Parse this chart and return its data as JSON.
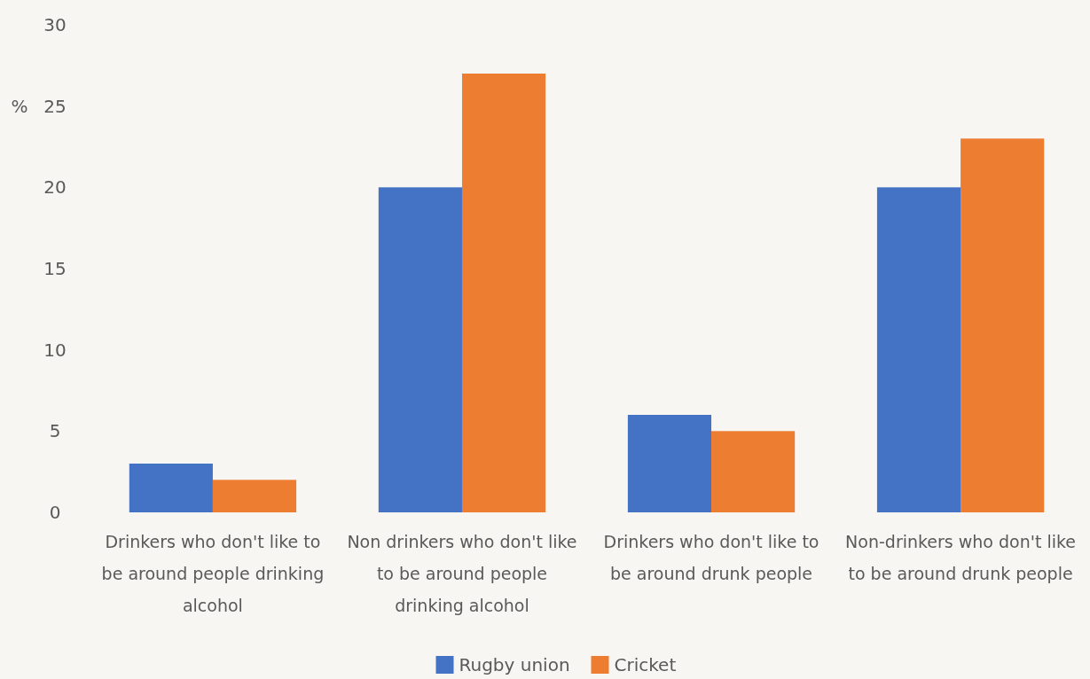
{
  "chart_data": {
    "type": "bar",
    "ylabel": "%",
    "categories": [
      "Drinkers who don't like to be around people drinking alcohol",
      "Non drinkers who don't like to be around people drinking alcohol",
      "Drinkers who don't like to be around drunk people",
      "Non-drinkers who don't like to be around drunk people"
    ],
    "series": [
      {
        "name": "Rugby union",
        "color": "#4472c4",
        "values": [
          3,
          20,
          6,
          20
        ]
      },
      {
        "name": "Cricket",
        "color": "#ed7d31",
        "values": [
          2,
          27,
          5,
          23
        ]
      }
    ],
    "ylim": [
      0,
      30
    ],
    "yticks": [
      0,
      5,
      10,
      15,
      20,
      25,
      30
    ],
    "grid": false,
    "legend": "bottom"
  }
}
